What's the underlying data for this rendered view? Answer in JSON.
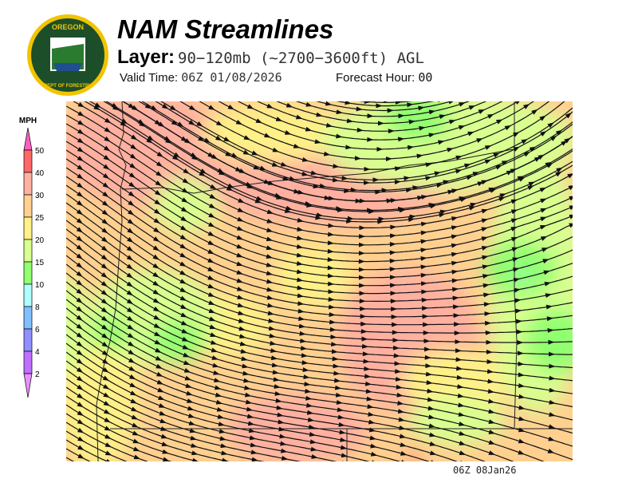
{
  "header": {
    "title": "NAM Streamlines",
    "layer_label": "Layer:",
    "layer_value": "90−120mb (~2700−3600ft) AGL",
    "valid_label": "Valid Time:",
    "valid_value": "06Z 01/08/2026",
    "forecast_label": "Forecast Hour:",
    "forecast_value": "00"
  },
  "logo": {
    "text_top": "OREGON",
    "text_bottom": "DEPARTMENT OF FORESTRY"
  },
  "colorbar": {
    "unit": "MPH",
    "levels": [
      "50",
      "40",
      "30",
      "25",
      "20",
      "15",
      "10",
      "8",
      "6",
      "4",
      "2"
    ],
    "colors": [
      "#ff6868",
      "#ffb0a0",
      "#ffd090",
      "#fff088",
      "#d8ff90",
      "#90ff70",
      "#b0ffff",
      "#80c0ff",
      "#9090ff",
      "#c070ff"
    ],
    "over_color": "#ff60c0",
    "under_color": "#e890ff"
  },
  "map": {
    "timestamp": "06Z 08Jan26",
    "base_color": "#ffd090"
  }
}
